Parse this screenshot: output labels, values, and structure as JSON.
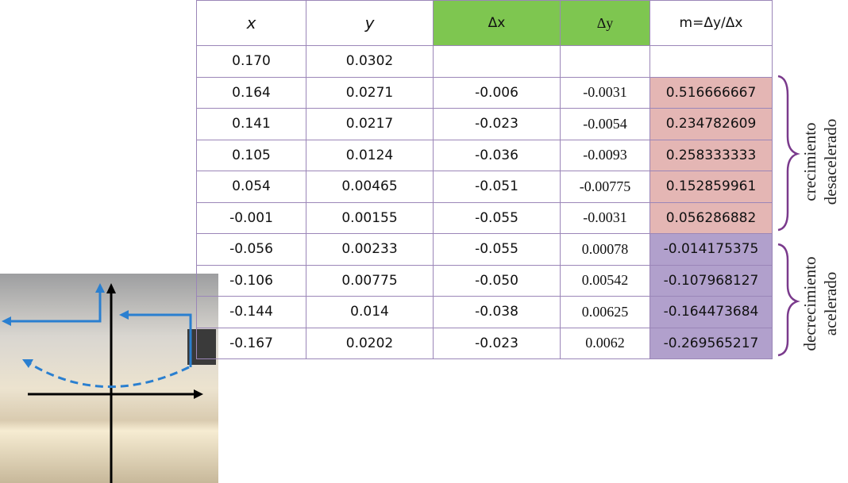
{
  "table": {
    "header": [
      "x",
      "y",
      "Δx",
      "Δy",
      "m=Δy/Δx"
    ],
    "rows": [
      [
        "0.170",
        "0.0302"
      ],
      [
        "0.164",
        "0.0271",
        "-0.006",
        "-0.0031",
        "0.516666667"
      ],
      [
        "0.141",
        "0.0217",
        "-0.023",
        "-0.0054",
        "0.234782609"
      ],
      [
        "0.105",
        "0.0124",
        "-0.036",
        "-0.0093",
        "0.258333333"
      ],
      [
        "0.054",
        "0.00465",
        "-0.051",
        "-0.00775",
        "0.152859961"
      ],
      [
        "-0.001",
        "0.00155",
        "-0.055",
        "-0.0031",
        "0.056286882"
      ],
      [
        "-0.056",
        "0.00233",
        "-0.055",
        "0.00078",
        "-0.014175375"
      ],
      [
        "-0.106",
        "0.00775",
        "-0.050",
        "0.00542",
        "-0.107968127"
      ],
      [
        "-0.144",
        "0.014",
        "-0.038",
        "0.00625",
        "-0.164473684"
      ],
      [
        "-0.167",
        "0.0202",
        "-0.023",
        "0.0062",
        "-0.269565217"
      ]
    ]
  },
  "annotations": [
    {
      "lines": [
        "crecimiento",
        "desacelerado"
      ]
    },
    {
      "lines": [
        "decrecimiento",
        "acelerado"
      ]
    }
  ]
}
